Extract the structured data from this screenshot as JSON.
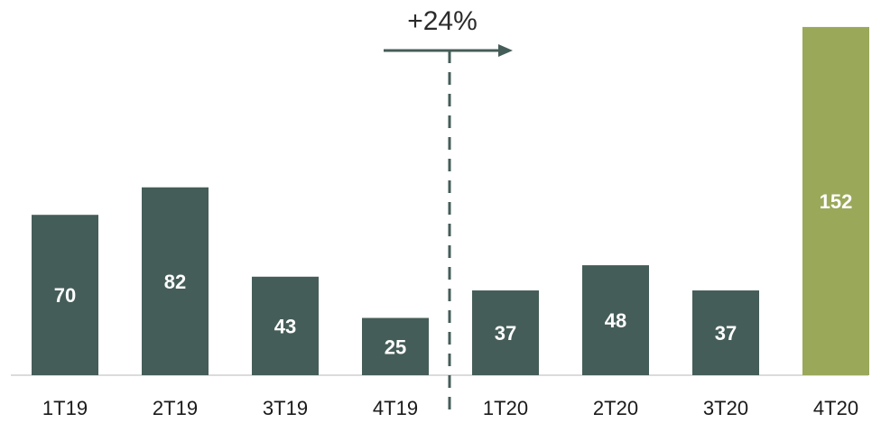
{
  "chart_data": {
    "type": "bar",
    "categories": [
      "1T19",
      "2T19",
      "3T19",
      "4T19",
      "1T20",
      "2T20",
      "3T20",
      "4T20"
    ],
    "values": [
      70,
      82,
      43,
      25,
      37,
      48,
      37,
      152
    ],
    "title": "",
    "xlabel": "",
    "ylabel": "",
    "ylim": [
      0,
      160
    ],
    "grid": false,
    "legend": "none",
    "annotation": {
      "text": "+24%",
      "divider_between": [
        "4T19",
        "1T20"
      ]
    },
    "colors": {
      "default": "#455d58",
      "highlight": "#9aa85a",
      "highlight_category": "4T20",
      "baseline": "#cfcfcf",
      "annotation": "#455d58"
    }
  }
}
